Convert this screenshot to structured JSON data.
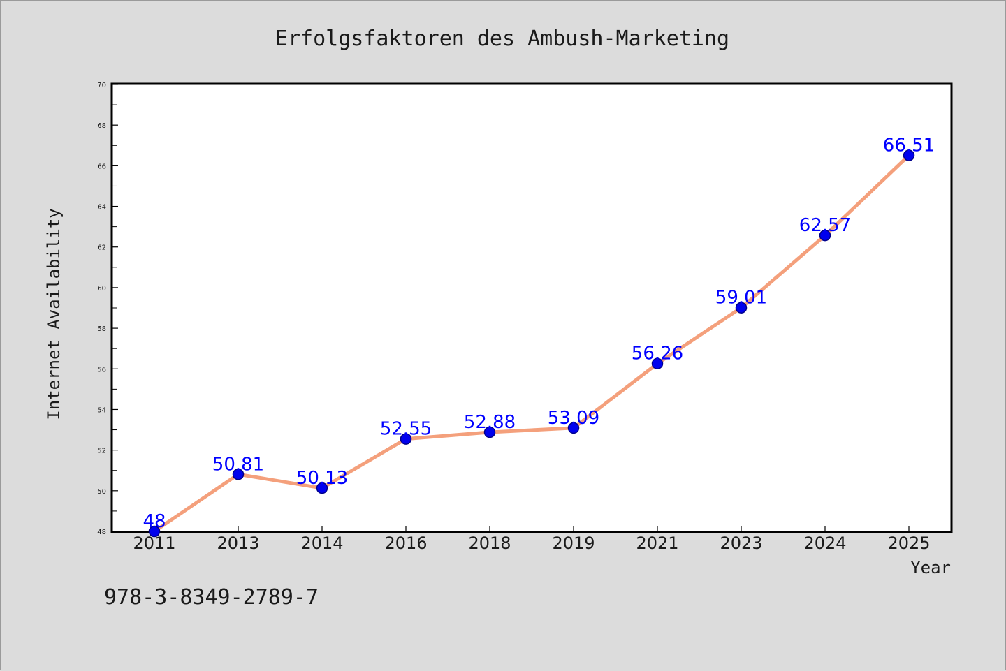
{
  "chart_data": {
    "type": "line",
    "title": "Erfolgsfaktoren des Ambush-Marketing",
    "xlabel": "Year",
    "ylabel": "Internet Availability",
    "categories": [
      "2011",
      "2013",
      "2014",
      "2016",
      "2018",
      "2019",
      "2021",
      "2023",
      "2024",
      "2025"
    ],
    "series": [
      {
        "values": [
          48,
          50.81,
          50.13,
          52.55,
          52.88,
          53.09,
          56.26,
          59.01,
          62.57,
          66.51
        ],
        "labels": [
          "48",
          "50.81",
          "50.13",
          "52.55",
          "52.88",
          "53.09",
          "56.26",
          "59.01",
          "62.57",
          "66.51"
        ],
        "line_color": "#f4a07c",
        "marker_color": "#0000ee",
        "label_color": "#0000ff"
      }
    ],
    "ylim": [
      48,
      70
    ],
    "yticks": [
      "48",
      "50",
      "52",
      "54",
      "56",
      "58",
      "60",
      "62",
      "64",
      "66",
      "68",
      "70"
    ],
    "grid": false,
    "legend": "none"
  },
  "footer": {
    "isbn": "978-3-8349-2789-7"
  },
  "colors": {
    "background": "#dcdcdc",
    "plot_background": "#ffffff",
    "text": "#1a1a1a"
  }
}
